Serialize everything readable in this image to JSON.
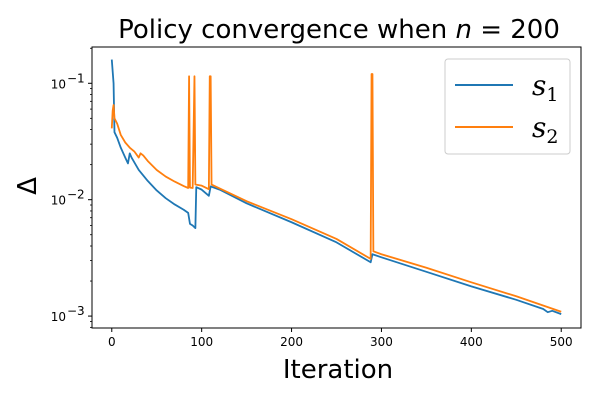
{
  "chart_data": {
    "type": "line",
    "title": {
      "prefix": "Policy convergence when ",
      "var": "n",
      "suffix": " = 200"
    },
    "xlabel": "Iteration",
    "ylabel": "Δ",
    "xlim": [
      -22,
      522
    ],
    "ylim": [
      0.00079,
      0.205
    ],
    "yscale": "log",
    "grid": false,
    "legend_position": "top-right",
    "x_ticks": [
      0,
      100,
      200,
      300,
      400,
      500
    ],
    "x_tick_labels": [
      "0",
      "100",
      "200",
      "300",
      "400",
      "500"
    ],
    "y_ticks": [
      0.001,
      0.01,
      0.1
    ],
    "y_tick_labels": [
      {
        "base": "10",
        "exp": "−3"
      },
      {
        "base": "10",
        "exp": "−2"
      },
      {
        "base": "10",
        "exp": "−1"
      }
    ],
    "series": [
      {
        "name": {
          "base": "s",
          "sub": "1"
        },
        "color": "#1f77b4",
        "points": [
          [
            0,
            0.16
          ],
          [
            2,
            0.1
          ],
          [
            3,
            0.038
          ],
          [
            6,
            0.034
          ],
          [
            10,
            0.028
          ],
          [
            15,
            0.023
          ],
          [
            18,
            0.0205
          ],
          [
            20,
            0.025
          ],
          [
            22,
            0.023
          ],
          [
            30,
            0.018
          ],
          [
            40,
            0.0145
          ],
          [
            50,
            0.012
          ],
          [
            60,
            0.0103
          ],
          [
            70,
            0.0091
          ],
          [
            80,
            0.0082
          ],
          [
            85,
            0.0077
          ],
          [
            87,
            0.0062
          ],
          [
            90,
            0.006
          ],
          [
            93,
            0.0057
          ],
          [
            94,
            0.0128
          ],
          [
            100,
            0.0122
          ],
          [
            108,
            0.0108
          ],
          [
            110,
            0.013
          ],
          [
            120,
            0.0122
          ],
          [
            150,
            0.0093
          ],
          [
            200,
            0.0064
          ],
          [
            250,
            0.0043
          ],
          [
            288,
            0.0029
          ],
          [
            290,
            0.0034
          ],
          [
            300,
            0.0032
          ],
          [
            350,
            0.0024
          ],
          [
            400,
            0.0018
          ],
          [
            450,
            0.00138
          ],
          [
            480,
            0.00115
          ],
          [
            485,
            0.00108
          ],
          [
            490,
            0.00111
          ],
          [
            500,
            0.00104
          ]
        ]
      },
      {
        "name": {
          "base": "s",
          "sub": "2"
        },
        "color": "#ff7f0e",
        "points": [
          [
            0,
            0.041
          ],
          [
            1,
            0.058
          ],
          [
            2,
            0.065
          ],
          [
            3,
            0.05
          ],
          [
            6,
            0.045
          ],
          [
            10,
            0.036
          ],
          [
            15,
            0.031
          ],
          [
            20,
            0.028
          ],
          [
            25,
            0.026
          ],
          [
            30,
            0.023
          ],
          [
            32,
            0.025
          ],
          [
            35,
            0.024
          ],
          [
            40,
            0.0215
          ],
          [
            50,
            0.018
          ],
          [
            60,
            0.0158
          ],
          [
            70,
            0.0143
          ],
          [
            80,
            0.0131
          ],
          [
            85,
            0.0126
          ],
          [
            86,
            0.115
          ],
          [
            87,
            0.0127
          ],
          [
            90,
            0.0126
          ],
          [
            92,
            0.115
          ],
          [
            93,
            0.0135
          ],
          [
            100,
            0.0132
          ],
          [
            108,
            0.0123
          ],
          [
            109,
            0.115
          ],
          [
            110,
            0.115
          ],
          [
            111,
            0.0135
          ],
          [
            120,
            0.0125
          ],
          [
            150,
            0.0097
          ],
          [
            200,
            0.0068
          ],
          [
            250,
            0.0046
          ],
          [
            288,
            0.0031
          ],
          [
            289,
            0.12
          ],
          [
            290,
            0.12
          ],
          [
            291,
            0.0036
          ],
          [
            300,
            0.0034
          ],
          [
            350,
            0.0026
          ],
          [
            400,
            0.00195
          ],
          [
            450,
            0.00148
          ],
          [
            500,
            0.00109
          ]
        ]
      }
    ]
  }
}
